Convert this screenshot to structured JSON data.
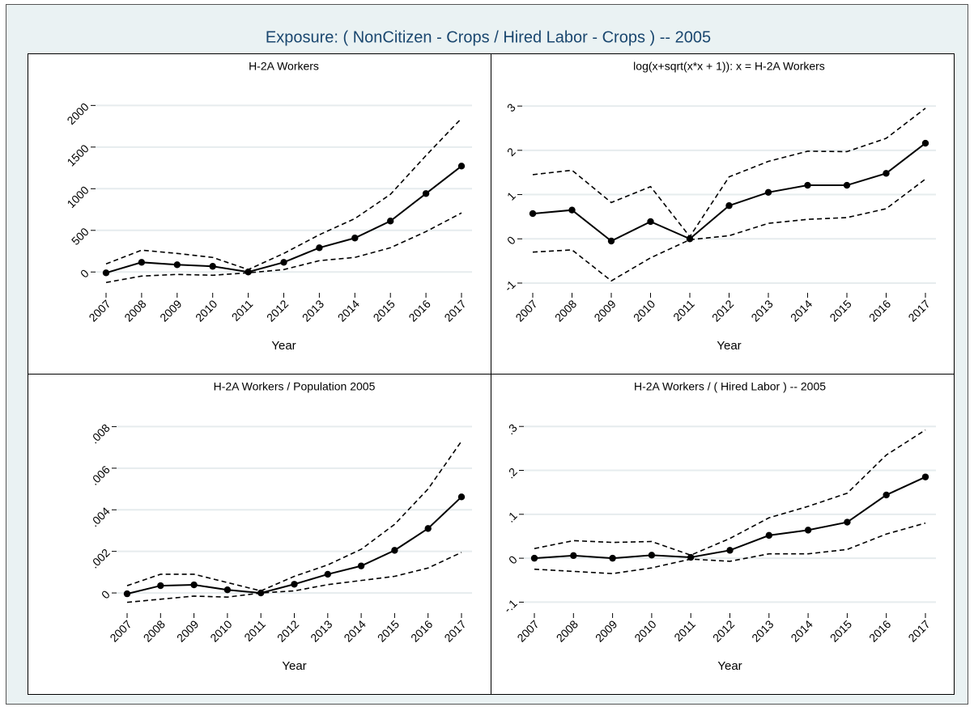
{
  "title": "Exposure: ( NonCitizen - Crops / Hired Labor - Crops ) -- 2005",
  "chart_data": [
    {
      "type": "line",
      "title": "H-2A Workers",
      "xlabel": "Year",
      "categories": [
        "2007",
        "2008",
        "2009",
        "2010",
        "2011",
        "2012",
        "2013",
        "2014",
        "2015",
        "2016",
        "2017"
      ],
      "ylim": [
        -250,
        2120
      ],
      "yticks": [
        0,
        500,
        1000,
        1500,
        2000
      ],
      "grid": true,
      "series": [
        {
          "color": "#000000",
          "style": "solid",
          "markers": true,
          "values": [
            -10,
            116,
            87,
            68,
            0,
            116,
            291,
            408,
            612,
            942,
            1272
          ]
        },
        {
          "color": "#000000",
          "style": "dashed",
          "markers": false,
          "values": [
            97,
            262,
            223,
            175,
            29,
            223,
            447,
            641,
            932,
            1398,
            1845
          ]
        },
        {
          "color": "#000000",
          "style": "dashed",
          "markers": false,
          "values": [
            -126,
            -49,
            -29,
            -39,
            -10,
            29,
            136,
            175,
            291,
            485,
            709
          ]
        }
      ]
    },
    {
      "type": "line",
      "title": "log(x+sqrt(x*x + 1)):  x = H-2A Workers",
      "xlabel": "Year",
      "categories": [
        "2007",
        "2008",
        "2009",
        "2010",
        "2011",
        "2012",
        "2013",
        "2014",
        "2015",
        "2016",
        "2017"
      ],
      "ylim": [
        -1.22,
        3.24
      ],
      "yticks": [
        -1,
        0,
        1,
        2,
        3
      ],
      "grid": true,
      "series": [
        {
          "color": "#000000",
          "style": "solid",
          "markers": true,
          "values": [
            0.57,
            0.65,
            -0.05,
            0.39,
            0.0,
            0.75,
            1.05,
            1.21,
            1.21,
            1.48,
            2.16
          ]
        },
        {
          "color": "#000000",
          "style": "dashed",
          "markers": false,
          "values": [
            1.45,
            1.55,
            0.82,
            1.18,
            0.05,
            1.4,
            1.75,
            1.98,
            1.97,
            2.27,
            2.95
          ]
        },
        {
          "color": "#000000",
          "style": "dashed",
          "markers": false,
          "values": [
            -0.3,
            -0.25,
            -0.95,
            -0.43,
            -0.02,
            0.07,
            0.35,
            0.44,
            0.48,
            0.68,
            1.35
          ]
        }
      ]
    },
    {
      "type": "line",
      "title": "H-2A Workers / Population 2005",
      "xlabel": "Year",
      "categories": [
        "2007",
        "2008",
        "2009",
        "2010",
        "2011",
        "2012",
        "2013",
        "2014",
        "2015",
        "2016",
        "2017"
      ],
      "ylim": [
        -0.00097,
        0.0086
      ],
      "yticks": [
        0,
        {
          "value": 0.002,
          "label": ".002"
        },
        {
          "value": 0.004,
          "label": ".004"
        },
        {
          "value": 0.006,
          "label": ".006"
        },
        {
          "value": 0.008,
          "label": ".008"
        }
      ],
      "grid": true,
      "series": [
        {
          "color": "#000000",
          "style": "solid",
          "markers": true,
          "values": [
            -4e-05,
            0.00035,
            0.00039,
            0.00015,
            0.0,
            0.00042,
            0.0009,
            0.0013,
            0.00205,
            0.0031,
            0.00462
          ]
        },
        {
          "color": "#000000",
          "style": "dashed",
          "markers": false,
          "values": [
            0.00035,
            0.0009,
            0.0009,
            0.0005,
            0.0001,
            0.0008,
            0.00135,
            0.0021,
            0.0033,
            0.005,
            0.0073
          ]
        },
        {
          "color": "#000000",
          "style": "dashed",
          "markers": false,
          "values": [
            -0.00045,
            -0.0003,
            -0.00015,
            -0.0002,
            0.0,
            0.0001,
            0.0004,
            0.0006,
            0.0008,
            0.0012,
            0.00195
          ]
        }
      ]
    },
    {
      "type": "line",
      "title": "H-2A Workers / ( Hired Labor ) -- 2005",
      "xlabel": "Year",
      "categories": [
        "2007",
        "2008",
        "2009",
        "2010",
        "2011",
        "2012",
        "2013",
        "2014",
        "2015",
        "2016",
        "2017"
      ],
      "ylim": [
        -0.125,
        0.328
      ],
      "yticks": [
        {
          "value": -0.1,
          "label": "-.1"
        },
        0,
        {
          "value": 0.1,
          "label": ".1"
        },
        {
          "value": 0.2,
          "label": ".2"
        },
        {
          "value": 0.3,
          "label": ".3"
        }
      ],
      "grid": true,
      "series": [
        {
          "color": "#000000",
          "style": "solid",
          "markers": true,
          "values": [
            0.0,
            0.006,
            0.0,
            0.007,
            0.002,
            0.018,
            0.052,
            0.064,
            0.082,
            0.144,
            0.185
          ]
        },
        {
          "color": "#000000",
          "style": "dashed",
          "markers": false,
          "values": [
            0.022,
            0.04,
            0.036,
            0.038,
            0.007,
            0.045,
            0.092,
            0.118,
            0.148,
            0.235,
            0.292
          ]
        },
        {
          "color": "#000000",
          "style": "dashed",
          "markers": false,
          "values": [
            -0.025,
            -0.03,
            -0.035,
            -0.022,
            -0.002,
            -0.007,
            0.01,
            0.01,
            0.02,
            0.055,
            0.08
          ]
        }
      ]
    }
  ]
}
